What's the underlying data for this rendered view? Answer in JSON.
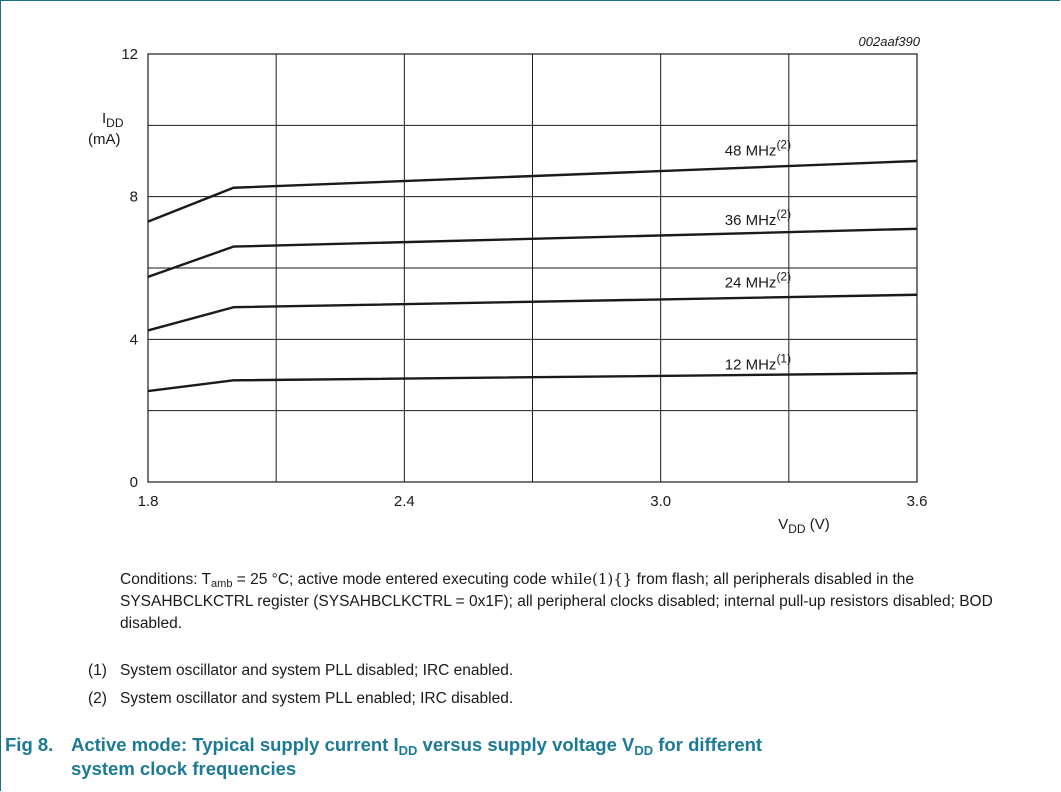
{
  "chart_data": {
    "type": "line",
    "figure_id": "002aaf390",
    "x_tick_labels": [
      "1.8",
      "2.4",
      "3.0",
      "3.6"
    ],
    "y_tick_labels": [
      "0",
      "4",
      "8",
      "12"
    ],
    "xlim": [
      1.8,
      3.6
    ],
    "ylim": [
      0,
      12
    ],
    "x_gridlines": [
      1.8,
      2.1,
      2.4,
      2.7,
      3.0,
      3.3,
      3.6
    ],
    "y_gridlines": [
      0,
      2,
      4,
      6,
      8,
      10,
      12
    ],
    "grid": true,
    "xlabel": {
      "main": "V",
      "sub": "DD",
      "unit": " (V)"
    },
    "ylabel": {
      "main": "I",
      "sub": "DD",
      "unit": "(mA)"
    },
    "series": [
      {
        "name": "48 MHz",
        "note": "(2)",
        "x": [
          1.8,
          2.0,
          3.6
        ],
        "y": [
          7.3,
          8.25,
          9.0
        ],
        "label_pos": [
          3.15,
          9.15
        ]
      },
      {
        "name": "36 MHz",
        "note": "(2)",
        "x": [
          1.8,
          2.0,
          3.6
        ],
        "y": [
          5.75,
          6.6,
          7.1
        ],
        "label_pos": [
          3.15,
          7.2
        ]
      },
      {
        "name": "24 MHz",
        "note": "(2)",
        "x": [
          1.8,
          2.0,
          3.6
        ],
        "y": [
          4.25,
          4.9,
          5.25
        ],
        "label_pos": [
          3.15,
          5.45
        ]
      },
      {
        "name": "12 MHz",
        "note": "(1)",
        "x": [
          1.8,
          2.0,
          3.6
        ],
        "y": [
          2.55,
          2.85,
          3.05
        ],
        "label_pos": [
          3.15,
          3.15
        ]
      }
    ]
  },
  "conditions": {
    "prefix": "Conditions: T",
    "sub": "amb",
    "text1": " = 25 °C; active mode entered executing code ",
    "code": "while(1){}",
    "text2": " from flash; all peripherals disabled in the SYSAHBCLKCTRL register (SYSAHBCLKCTRL = 0x1F); all peripheral clocks disabled; internal pull-up resistors disabled; BOD disabled."
  },
  "notes": [
    {
      "num": "(1)",
      "text": "System oscillator and system PLL disabled; IRC enabled."
    },
    {
      "num": "(2)",
      "text": "System oscillator and system PLL enabled; IRC disabled."
    }
  ],
  "caption": {
    "fig": "Fig 8.",
    "t1": "Active mode: Typical supply current I",
    "s1": "DD",
    "t2": " versus supply voltage V",
    "s2": "DD",
    "t3": " for different",
    "line2": "system clock frequencies"
  }
}
